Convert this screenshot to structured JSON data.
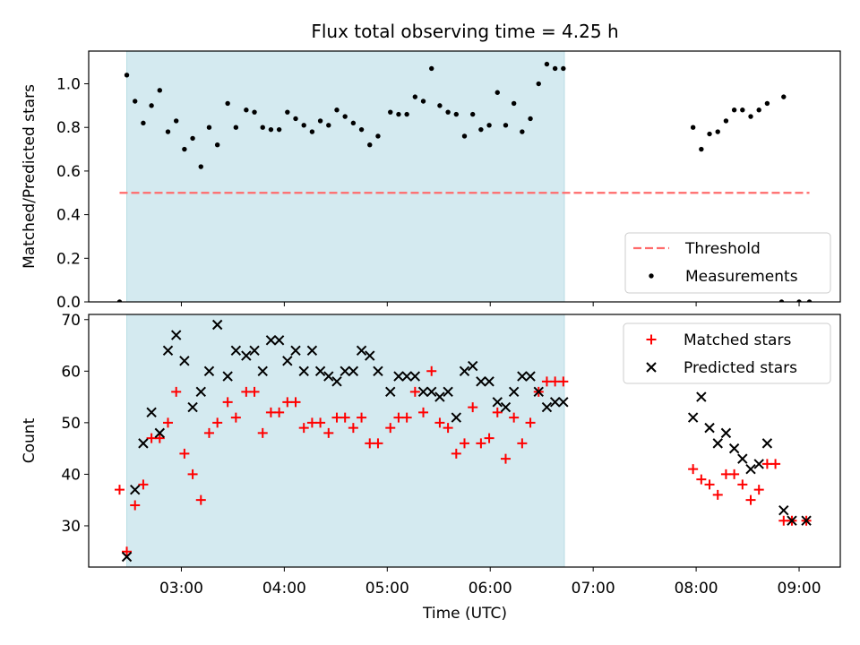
{
  "chart_data": {
    "title": "Flux total observing time = 4.25 h",
    "xlabel": "Time (UTC)",
    "x_unit": "hours UTC",
    "xlim": [
      2.1,
      9.4
    ],
    "x_ticks": [
      3,
      4,
      5,
      6,
      7,
      8,
      9
    ],
    "x_tick_labels": [
      "03:00",
      "04:00",
      "05:00",
      "06:00",
      "07:00",
      "08:00",
      "09:00"
    ],
    "highlight_span": [
      2.47,
      6.72
    ],
    "colors": {
      "span": "#d4eaf0",
      "threshold": "#ff6b6b",
      "measurements": "#000000",
      "matched": "#ff0000",
      "predicted": "#000000"
    },
    "panels": [
      {
        "type": "scatter",
        "ylabel": "Matched/Predicted stars",
        "ylim": [
          0.0,
          1.15
        ],
        "y_ticks": [
          0.0,
          0.2,
          0.4,
          0.6,
          0.8,
          1.0
        ],
        "y_tick_labels": [
          "0.0",
          "0.2",
          "0.4",
          "0.6",
          "0.8",
          "1.0"
        ],
        "threshold": 0.5,
        "threshold_range": [
          2.4,
          9.1
        ],
        "legend": {
          "position": "lower right",
          "entries": [
            "Threshold",
            "Measurements"
          ]
        },
        "series": [
          {
            "name": "Measurements",
            "marker": "dot",
            "x": [
              2.4,
              2.47,
              2.55,
              2.63,
              2.71,
              2.79,
              2.87,
              2.95,
              3.03,
              3.11,
              3.19,
              3.27,
              3.35,
              3.45,
              3.53,
              3.63,
              3.71,
              3.79,
              3.87,
              3.95,
              4.03,
              4.11,
              4.19,
              4.27,
              4.35,
              4.43,
              4.51,
              4.59,
              4.67,
              4.75,
              4.83,
              4.91,
              5.03,
              5.11,
              5.19,
              5.27,
              5.35,
              5.43,
              5.51,
              5.59,
              5.67,
              5.75,
              5.83,
              5.91,
              5.99,
              6.07,
              6.15,
              6.23,
              6.31,
              6.39,
              6.47,
              6.55,
              6.63,
              6.71,
              7.97,
              8.05,
              8.13,
              8.21,
              8.29,
              8.37,
              8.45,
              8.53,
              8.61,
              8.69,
              8.85,
              8.83,
              9.0,
              9.1
            ],
            "y": [
              0.0,
              1.04,
              0.92,
              0.82,
              0.9,
              0.97,
              0.78,
              0.83,
              0.7,
              0.75,
              0.62,
              0.8,
              0.72,
              0.91,
              0.8,
              0.88,
              0.87,
              0.8,
              0.79,
              0.79,
              0.87,
              0.84,
              0.81,
              0.78,
              0.83,
              0.81,
              0.88,
              0.85,
              0.82,
              0.79,
              0.72,
              0.76,
              0.87,
              0.86,
              0.86,
              0.94,
              0.92,
              1.07,
              0.9,
              0.87,
              0.86,
              0.76,
              0.86,
              0.79,
              0.81,
              0.96,
              0.81,
              0.91,
              0.78,
              0.84,
              1.0,
              1.09,
              1.07,
              1.07,
              0.8,
              0.7,
              0.77,
              0.78,
              0.83,
              0.88,
              0.88,
              0.85,
              0.88,
              0.91,
              0.94,
              0.0,
              0.0,
              0.0
            ]
          }
        ]
      },
      {
        "type": "scatter",
        "ylabel": "Count",
        "ylim": [
          22,
          71
        ],
        "y_ticks": [
          30,
          40,
          50,
          60,
          70
        ],
        "y_tick_labels": [
          "30",
          "40",
          "50",
          "60",
          "70"
        ],
        "legend": {
          "position": "upper right",
          "entries": [
            "Matched stars",
            "Predicted stars"
          ]
        },
        "series": [
          {
            "name": "Matched stars",
            "marker": "plus",
            "x": [
              2.4,
              2.47,
              2.55,
              2.63,
              2.71,
              2.79,
              2.87,
              2.95,
              3.03,
              3.11,
              3.19,
              3.27,
              3.35,
              3.45,
              3.53,
              3.63,
              3.71,
              3.79,
              3.87,
              3.95,
              4.03,
              4.11,
              4.19,
              4.27,
              4.35,
              4.43,
              4.51,
              4.59,
              4.67,
              4.75,
              4.83,
              4.91,
              5.03,
              5.11,
              5.19,
              5.27,
              5.35,
              5.43,
              5.51,
              5.59,
              5.67,
              5.75,
              5.83,
              5.91,
              5.99,
              6.07,
              6.15,
              6.23,
              6.31,
              6.39,
              6.47,
              6.55,
              6.63,
              6.71,
              7.97,
              8.05,
              8.13,
              8.21,
              8.29,
              8.37,
              8.45,
              8.53,
              8.61,
              8.69,
              8.77,
              8.85,
              8.93,
              9.07
            ],
            "y": [
              37,
              25,
              34,
              38,
              47,
              47,
              50,
              56,
              44,
              40,
              35,
              48,
              50,
              54,
              51,
              56,
              56,
              48,
              52,
              52,
              54,
              54,
              49,
              50,
              50,
              48,
              51,
              51,
              49,
              51,
              46,
              46,
              49,
              51,
              51,
              56,
              52,
              60,
              50,
              49,
              44,
              46,
              53,
              46,
              47,
              52,
              43,
              51,
              46,
              50,
              56,
              58,
              58,
              58,
              41,
              39,
              38,
              36,
              40,
              40,
              38,
              35,
              37,
              42,
              42,
              31,
              31,
              31
            ]
          },
          {
            "name": "Predicted stars",
            "marker": "x",
            "x": [
              2.47,
              2.55,
              2.63,
              2.71,
              2.79,
              2.87,
              2.95,
              3.03,
              3.11,
              3.19,
              3.27,
              3.35,
              3.45,
              3.53,
              3.63,
              3.71,
              3.79,
              3.87,
              3.95,
              4.03,
              4.11,
              4.19,
              4.27,
              4.35,
              4.43,
              4.51,
              4.59,
              4.67,
              4.75,
              4.83,
              4.91,
              5.03,
              5.11,
              5.19,
              5.27,
              5.35,
              5.43,
              5.51,
              5.59,
              5.67,
              5.75,
              5.83,
              5.91,
              5.99,
              6.07,
              6.15,
              6.23,
              6.31,
              6.39,
              6.47,
              6.55,
              6.63,
              6.71,
              7.97,
              8.05,
              8.13,
              8.21,
              8.29,
              8.37,
              8.45,
              8.53,
              8.61,
              8.69,
              8.85,
              8.93,
              9.07
            ],
            "y": [
              24,
              37,
              46,
              52,
              48,
              64,
              67,
              62,
              53,
              56,
              60,
              69,
              59,
              64,
              63,
              64,
              60,
              66,
              66,
              62,
              64,
              60,
              64,
              60,
              59,
              58,
              60,
              60,
              64,
              63,
              60,
              56,
              59,
              59,
              59,
              56,
              56,
              55,
              56,
              51,
              60,
              61,
              58,
              58,
              54,
              53,
              56,
              59,
              59,
              56,
              53,
              54,
              54,
              51,
              55,
              49,
              46,
              48,
              45,
              43,
              41,
              42,
              46,
              33,
              31,
              31
            ]
          }
        ]
      }
    ]
  }
}
